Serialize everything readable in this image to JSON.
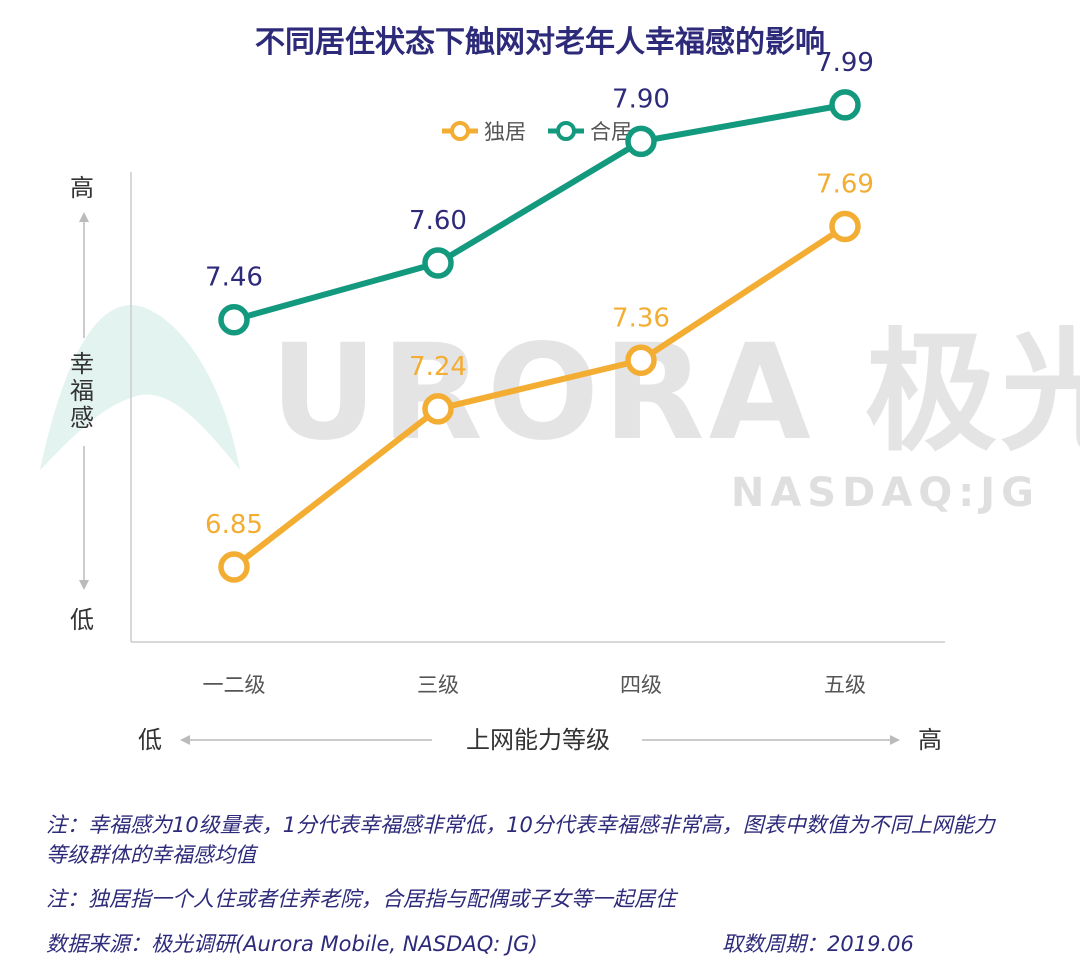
{
  "colors": {
    "solo": "#f3ad33",
    "together": "#13997d",
    "title": "#2e2a7a",
    "value_label_together": "#2e2a7a",
    "value_label_solo": "#f3ad33",
    "axis": "#cccccc",
    "arrow": "#bbbbbb"
  },
  "title": "不同居住状态下触网对老年人幸福感的影响",
  "legend": [
    "独居",
    "合居"
  ],
  "y_axis": {
    "high": "高",
    "label": "幸福感",
    "low": "低"
  },
  "x_axis": {
    "low": "低",
    "label": "上网能力等级",
    "high": "高"
  },
  "watermark": {
    "main": "URORA 极光",
    "sub": "NASDAQ:JG"
  },
  "chart_data": {
    "type": "line",
    "title": "不同居住状态下触网对老年人幸福感的影响",
    "categories": [
      "一二级",
      "三级",
      "四级",
      "五级"
    ],
    "series": [
      {
        "name": "独居",
        "values": [
          6.85,
          7.24,
          7.36,
          7.69
        ],
        "labels": [
          "6.85",
          "7.24",
          "7.36",
          "7.69"
        ]
      },
      {
        "name": "合居",
        "values": [
          7.46,
          7.6,
          7.9,
          7.99
        ],
        "labels": [
          "7.46",
          "7.60",
          "7.90",
          "7.99"
        ]
      }
    ],
    "xlabel": "上网能力等级",
    "ylabel": "幸福感",
    "grid": false,
    "legend_position": "top-center"
  },
  "notes": [
    "注：幸福感为10级量表，1分代表幸福感非常低，10分代表幸福感非常高，图表中数值为不同上网能力等级群体的幸福感均值",
    "注：独居指一个人住或者住养老院，合居指与配偶或子女等一起居住"
  ],
  "source": "数据来源：极光调研(Aurora Mobile, NASDAQ: JG)",
  "period": "取数周期：2019.06"
}
